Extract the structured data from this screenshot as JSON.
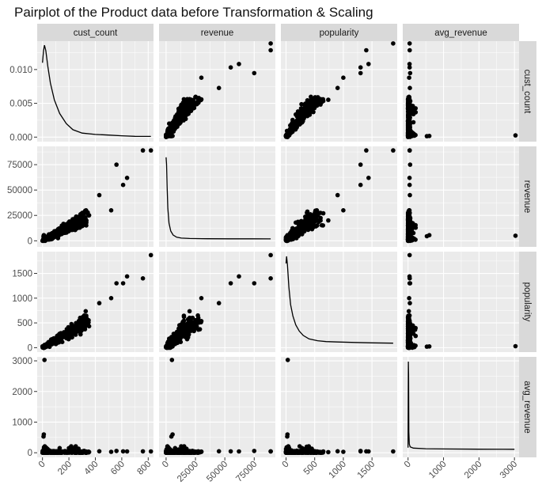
{
  "chart_data": {
    "type": "scatter",
    "title": "Pairplot of the Product data before Transformation & Scaling",
    "variables": [
      "cust_count",
      "revenue",
      "popularity",
      "avg_revenue"
    ],
    "ranges": {
      "cust_count": [
        -40,
        840
      ],
      "revenue": [
        -6000,
        93000
      ],
      "popularity": [
        -90,
        1940
      ],
      "avg_revenue": [
        -150,
        3130
      ]
    },
    "density_range": [
      -0.00067,
      0.0142
    ],
    "x_ticks": {
      "cust_count": [
        0,
        200,
        400,
        600,
        800
      ],
      "revenue": [
        0,
        25000,
        50000,
        75000
      ],
      "popularity": [
        0,
        500,
        1000,
        1500
      ],
      "avg_revenue": [
        0,
        1000,
        2000,
        3000
      ]
    },
    "y_ticks": {
      "density": [
        "0.000",
        "0.005",
        "0.010"
      ],
      "revenue": [
        0,
        25000,
        50000,
        75000
      ],
      "popularity": [
        0,
        500,
        1000,
        1500
      ],
      "avg_revenue": [
        0,
        1000,
        2000,
        3000
      ]
    },
    "density_curves": {
      "cust_count": [
        [
          0,
          0.011
        ],
        [
          8,
          0.0128
        ],
        [
          15,
          0.0136
        ],
        [
          25,
          0.0128
        ],
        [
          40,
          0.0105
        ],
        [
          60,
          0.008
        ],
        [
          90,
          0.0055
        ],
        [
          130,
          0.0035
        ],
        [
          180,
          0.002
        ],
        [
          230,
          0.0011
        ],
        [
          300,
          0.0006
        ],
        [
          400,
          0.0004
        ],
        [
          500,
          0.0003
        ],
        [
          600,
          0.0002
        ],
        [
          700,
          0.00012
        ],
        [
          820,
          0.0001
        ]
      ],
      "revenue": [
        [
          0,
          0.93
        ],
        [
          400,
          0.85
        ],
        [
          900,
          0.6
        ],
        [
          1500,
          0.35
        ],
        [
          2500,
          0.18
        ],
        [
          4000,
          0.09
        ],
        [
          6000,
          0.045
        ],
        [
          9000,
          0.02
        ],
        [
          13000,
          0.01
        ],
        [
          20000,
          0.005
        ],
        [
          35000,
          0.003
        ],
        [
          55000,
          0.002
        ],
        [
          75000,
          0.0015
        ],
        [
          89000,
          0.001
        ]
      ],
      "popularity": [
        [
          0,
          0.92
        ],
        [
          10,
          1.0
        ],
        [
          25,
          0.9
        ],
        [
          50,
          0.65
        ],
        [
          80,
          0.45
        ],
        [
          120,
          0.32
        ],
        [
          170,
          0.22
        ],
        [
          230,
          0.15
        ],
        [
          300,
          0.1
        ],
        [
          400,
          0.06
        ],
        [
          550,
          0.04
        ],
        [
          700,
          0.03
        ],
        [
          900,
          0.025
        ],
        [
          1200,
          0.02
        ],
        [
          1500,
          0.015
        ],
        [
          1870,
          0.012
        ]
      ],
      "avg_revenue": [
        [
          0,
          0.02
        ],
        [
          8,
          1.0
        ],
        [
          15,
          0.85
        ],
        [
          22,
          0.2
        ],
        [
          35,
          0.06
        ],
        [
          60,
          0.03
        ],
        [
          150,
          0.015
        ],
        [
          500,
          0.008
        ],
        [
          1000,
          0.005
        ],
        [
          2000,
          0.003
        ],
        [
          3000,
          0.002
        ]
      ]
    },
    "outliers": [
      {
        "cust_count": 820,
        "revenue": 89000,
        "popularity": 1870,
        "avg_revenue": 44
      },
      {
        "cust_count": 760,
        "revenue": 89000,
        "popularity": 1400,
        "avg_revenue": 46
      },
      {
        "cust_count": 640,
        "revenue": 62000,
        "popularity": 1440,
        "avg_revenue": 43
      },
      {
        "cust_count": 560,
        "revenue": 75000,
        "popularity": 1300,
        "avg_revenue": 58
      },
      {
        "cust_count": 610,
        "revenue": 55000,
        "popularity": 1300,
        "avg_revenue": 45
      },
      {
        "cust_count": 520,
        "revenue": 30000,
        "popularity": 1000,
        "avg_revenue": 30
      },
      {
        "cust_count": 430,
        "revenue": 45000,
        "popularity": 900,
        "avg_revenue": 50
      },
      {
        "cust_count": 15,
        "revenue": 5000,
        "popularity": 30,
        "avg_revenue": 3030
      },
      {
        "cust_count": 10,
        "revenue": 5500,
        "popularity": 25,
        "avg_revenue": 600
      },
      {
        "cust_count": 8,
        "revenue": 4500,
        "popularity": 20,
        "avg_revenue": 530
      }
    ]
  }
}
